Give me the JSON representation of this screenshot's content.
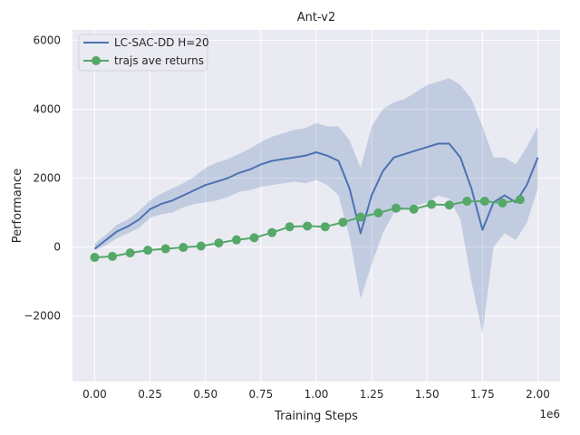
{
  "chart_data": {
    "type": "line",
    "title": "Ant-v2",
    "xlabel": "Training Steps",
    "ylabel": "Performance",
    "x_offset_label": "1e6",
    "xlim": [
      -0.1,
      2.1
    ],
    "ylim": [
      -3900,
      6300
    ],
    "xticks": [
      0.0,
      0.25,
      0.5,
      0.75,
      1.0,
      1.25,
      1.5,
      1.75,
      2.0
    ],
    "xtick_labels": [
      "0.00",
      "0.25",
      "0.50",
      "0.75",
      "1.00",
      "1.25",
      "1.50",
      "1.75",
      "2.00"
    ],
    "yticks": [
      -2000,
      0,
      2000,
      4000,
      6000
    ],
    "ytick_labels": [
      "−2000",
      "0",
      "2000",
      "4000",
      "6000"
    ],
    "grid": true,
    "legend_position": "top-left",
    "series": [
      {
        "name": "LC-SAC-DD H=20",
        "color": "#4c72b0",
        "style": "line-with-shaded-band",
        "x": [
          0.0,
          0.05,
          0.1,
          0.15,
          0.2,
          0.25,
          0.3,
          0.35,
          0.4,
          0.45,
          0.5,
          0.55,
          0.6,
          0.65,
          0.7,
          0.75,
          0.8,
          0.85,
          0.9,
          0.95,
          1.0,
          1.05,
          1.1,
          1.15,
          1.2,
          1.25,
          1.3,
          1.35,
          1.4,
          1.45,
          1.5,
          1.55,
          1.6,
          1.65,
          1.7,
          1.75,
          1.8,
          1.85,
          1.9,
          1.95,
          2.0
        ],
        "y": [
          -50,
          200,
          450,
          600,
          800,
          1100,
          1250,
          1350,
          1500,
          1650,
          1800,
          1900,
          2000,
          2150,
          2250,
          2400,
          2500,
          2550,
          2600,
          2650,
          2750,
          2650,
          2500,
          1700,
          400,
          1500,
          2200,
          2600,
          2700,
          2800,
          2900,
          3000,
          3000,
          2600,
          1700,
          500,
          1300,
          1500,
          1300,
          1800,
          2600
        ],
        "band_lower": [
          -100,
          50,
          250,
          400,
          550,
          850,
          950,
          1000,
          1150,
          1250,
          1300,
          1350,
          1450,
          1600,
          1650,
          1750,
          1800,
          1850,
          1900,
          1850,
          1950,
          1800,
          1500,
          300,
          -1500,
          -500,
          400,
          1000,
          1100,
          1200,
          1300,
          1500,
          1400,
          800,
          -1000,
          -2500,
          0,
          400,
          200,
          700,
          1700
        ],
        "band_upper": [
          100,
          350,
          650,
          800,
          1050,
          1350,
          1550,
          1700,
          1850,
          2050,
          2300,
          2450,
          2550,
          2700,
          2850,
          3050,
          3200,
          3300,
          3400,
          3450,
          3600,
          3500,
          3500,
          3100,
          2300,
          3500,
          4000,
          4200,
          4300,
          4500,
          4700,
          4800,
          4900,
          4700,
          4300,
          3500,
          2600,
          2600,
          2400,
          2900,
          3500
        ]
      },
      {
        "name": "trajs ave returns",
        "color": "#55a868",
        "style": "line-with-markers",
        "x": [
          0.0,
          0.08,
          0.16,
          0.24,
          0.32,
          0.4,
          0.48,
          0.56,
          0.64,
          0.72,
          0.8,
          0.88,
          0.96,
          1.04,
          1.12,
          1.2,
          1.28,
          1.36,
          1.44,
          1.52,
          1.6,
          1.68,
          1.76,
          1.84,
          1.92
        ],
        "y": [
          -300,
          -270,
          -170,
          -90,
          -50,
          -10,
          30,
          120,
          210,
          270,
          420,
          590,
          610,
          590,
          720,
          870,
          990,
          1130,
          1100,
          1240,
          1220,
          1330,
          1330,
          1280,
          1380
        ]
      }
    ]
  }
}
